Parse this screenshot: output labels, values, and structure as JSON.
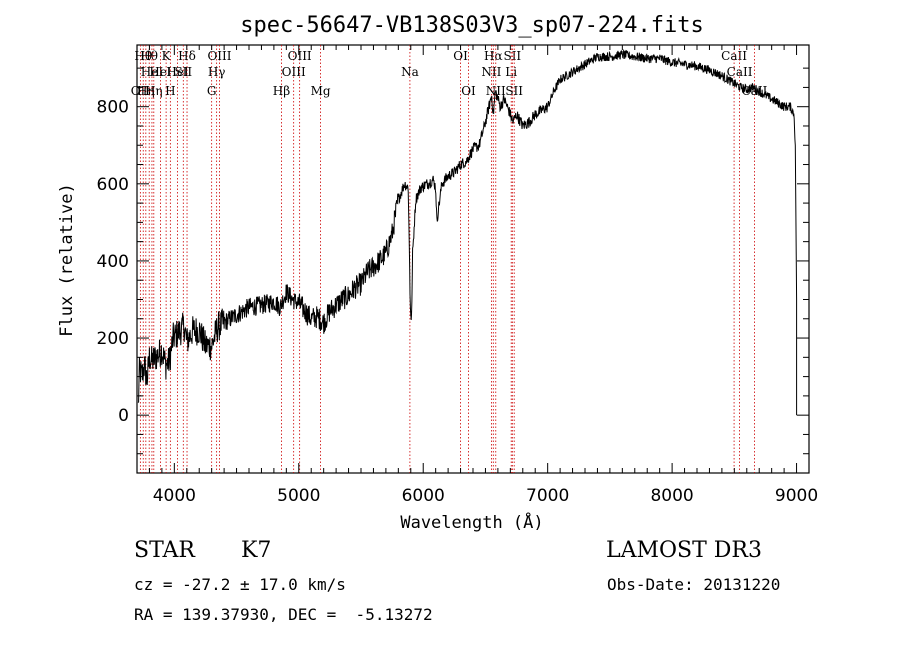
{
  "chart_data": {
    "type": "line",
    "title": "spec-56647-VB138S03V3_sp07-224.fits",
    "xlabel": "Wavelength (Å)",
    "ylabel": "Flux (relative)",
    "xlim": [
      3700,
      9100
    ],
    "ylim": [
      -150,
      960
    ],
    "x_ticks": [
      4000,
      5000,
      6000,
      7000,
      8000,
      9000
    ],
    "y_ticks": [
      0,
      200,
      400,
      600,
      800
    ],
    "line_color": "#000000",
    "marker_color": "#cc0000",
    "series": [
      {
        "name": "spectrum",
        "knots": [
          [
            3710,
            20
          ],
          [
            3720,
            120
          ],
          [
            3740,
            100
          ],
          [
            3760,
            130
          ],
          [
            3780,
            90
          ],
          [
            3800,
            150
          ],
          [
            3820,
            140
          ],
          [
            3850,
            150
          ],
          [
            3880,
            160
          ],
          [
            3900,
            170
          ],
          [
            3930,
            130
          ],
          [
            3960,
            140
          ],
          [
            3990,
            200
          ],
          [
            4020,
            210
          ],
          [
            4050,
            220
          ],
          [
            4080,
            230
          ],
          [
            4100,
            190
          ],
          [
            4150,
            220
          ],
          [
            4200,
            220
          ],
          [
            4250,
            180
          ],
          [
            4300,
            180
          ],
          [
            4350,
            230
          ],
          [
            4400,
            240
          ],
          [
            4500,
            260
          ],
          [
            4600,
            280
          ],
          [
            4700,
            285
          ],
          [
            4800,
            295
          ],
          [
            4850,
            280
          ],
          [
            4900,
            320
          ],
          [
            4950,
            300
          ],
          [
            5000,
            290
          ],
          [
            5050,
            270
          ],
          [
            5100,
            250
          ],
          [
            5150,
            255
          ],
          [
            5200,
            240
          ],
          [
            5250,
            270
          ],
          [
            5300,
            285
          ],
          [
            5350,
            300
          ],
          [
            5400,
            310
          ],
          [
            5450,
            330
          ],
          [
            5500,
            340
          ],
          [
            5550,
            370
          ],
          [
            5600,
            385
          ],
          [
            5650,
            400
          ],
          [
            5700,
            420
          ],
          [
            5750,
            470
          ],
          [
            5800,
            560
          ],
          [
            5850,
            600
          ],
          [
            5880,
            590
          ],
          [
            5895,
            300
          ],
          [
            5905,
            230
          ],
          [
            5915,
            420
          ],
          [
            5940,
            560
          ],
          [
            5980,
            590
          ],
          [
            6030,
            600
          ],
          [
            6080,
            610
          ],
          [
            6100,
            590
          ],
          [
            6110,
            500
          ],
          [
            6120,
            530
          ],
          [
            6150,
            600
          ],
          [
            6200,
            620
          ],
          [
            6250,
            630
          ],
          [
            6300,
            650
          ],
          [
            6350,
            660
          ],
          [
            6400,
            690
          ],
          [
            6450,
            700
          ],
          [
            6500,
            760
          ],
          [
            6550,
            830
          ],
          [
            6563,
            780
          ],
          [
            6580,
            840
          ],
          [
            6620,
            800
          ],
          [
            6650,
            820
          ],
          [
            6700,
            780
          ],
          [
            6720,
            760
          ],
          [
            6750,
            780
          ],
          [
            6800,
            750
          ],
          [
            6850,
            760
          ],
          [
            6900,
            780
          ],
          [
            6950,
            790
          ],
          [
            7000,
            800
          ],
          [
            7050,
            840
          ],
          [
            7100,
            870
          ],
          [
            7150,
            880
          ],
          [
            7200,
            890
          ],
          [
            7250,
            900
          ],
          [
            7300,
            910
          ],
          [
            7350,
            920
          ],
          [
            7400,
            930
          ],
          [
            7500,
            930
          ],
          [
            7600,
            935
          ],
          [
            7700,
            930
          ],
          [
            7800,
            925
          ],
          [
            7900,
            925
          ],
          [
            8000,
            915
          ],
          [
            8100,
            910
          ],
          [
            8200,
            905
          ],
          [
            8300,
            895
          ],
          [
            8400,
            880
          ],
          [
            8500,
            860
          ],
          [
            8550,
            850
          ],
          [
            8600,
            845
          ],
          [
            8650,
            850
          ],
          [
            8700,
            840
          ],
          [
            8800,
            820
          ],
          [
            8850,
            810
          ],
          [
            8900,
            800
          ],
          [
            8950,
            800
          ],
          [
            8980,
            780
          ],
          [
            8990,
            700
          ],
          [
            9000,
            300
          ],
          [
            9000,
            0
          ]
        ],
        "noise_by_range": [
          [
            3700,
            4400,
            40
          ],
          [
            4400,
            5000,
            25
          ],
          [
            5000,
            5800,
            30
          ],
          [
            5800,
            7000,
            15
          ],
          [
            7000,
            9000,
            12
          ]
        ]
      }
    ],
    "line_markers": [
      {
        "x": 3727,
        "label": "OII",
        "row": 2
      },
      {
        "x": 3750,
        "label": "Hθ",
        "row": 0
      },
      {
        "x": 3771,
        "label": "Hη",
        "row": 2
      },
      {
        "x": 3798,
        "label": "Hθ",
        "row": 0
      },
      {
        "x": 3820,
        "label": "HeI",
        "row": 1
      },
      {
        "x": 3835,
        "label": "Hη",
        "row": 2
      },
      {
        "x": 3889,
        "label": "HeI",
        "row": 1
      },
      {
        "x": 3934,
        "label": "K",
        "row": 0
      },
      {
        "x": 3968,
        "label": "H",
        "row": 2
      },
      {
        "x": 4026,
        "label": "HeI",
        "row": 1
      },
      {
        "x": 4072,
        "label": "SII",
        "row": 1
      },
      {
        "x": 4102,
        "label": "Hδ",
        "row": 0
      },
      {
        "x": 4300,
        "label": "G",
        "row": 2
      },
      {
        "x": 4340,
        "label": "Hγ",
        "row": 1
      },
      {
        "x": 4363,
        "label": "OIII",
        "row": 0
      },
      {
        "x": 4861,
        "label": "Hβ",
        "row": 2
      },
      {
        "x": 4959,
        "label": "OIII",
        "row": 1
      },
      {
        "x": 5007,
        "label": "OIII",
        "row": 0
      },
      {
        "x": 5175,
        "label": "Mg",
        "row": 2
      },
      {
        "x": 5893,
        "label": "Na",
        "row": 1
      },
      {
        "x": 6300,
        "label": "OI",
        "row": 0
      },
      {
        "x": 6364,
        "label": "OI",
        "row": 2
      },
      {
        "x": 6548,
        "label": "NII",
        "row": 1
      },
      {
        "x": 6563,
        "label": "Hα",
        "row": 0
      },
      {
        "x": 6583,
        "label": "NII",
        "row": 2
      },
      {
        "x": 6707,
        "label": "Li",
        "row": 1
      },
      {
        "x": 6716,
        "label": "SII",
        "row": 0
      },
      {
        "x": 6731,
        "label": "SII",
        "row": 2
      },
      {
        "x": 8498,
        "label": "CaII",
        "row": 0
      },
      {
        "x": 8542,
        "label": "CaII",
        "row": 1
      },
      {
        "x": 8662,
        "label": "CaII",
        "row": 2
      }
    ]
  },
  "info": {
    "class_label": "STAR",
    "subclass": "K7",
    "survey": "LAMOST DR3",
    "velocity": "cz = -27.2 ± 17.0 km/s",
    "obs_date": "Obs-Date: 20131220",
    "coords": "RA = 139.37930, DEC =  -5.13272"
  }
}
